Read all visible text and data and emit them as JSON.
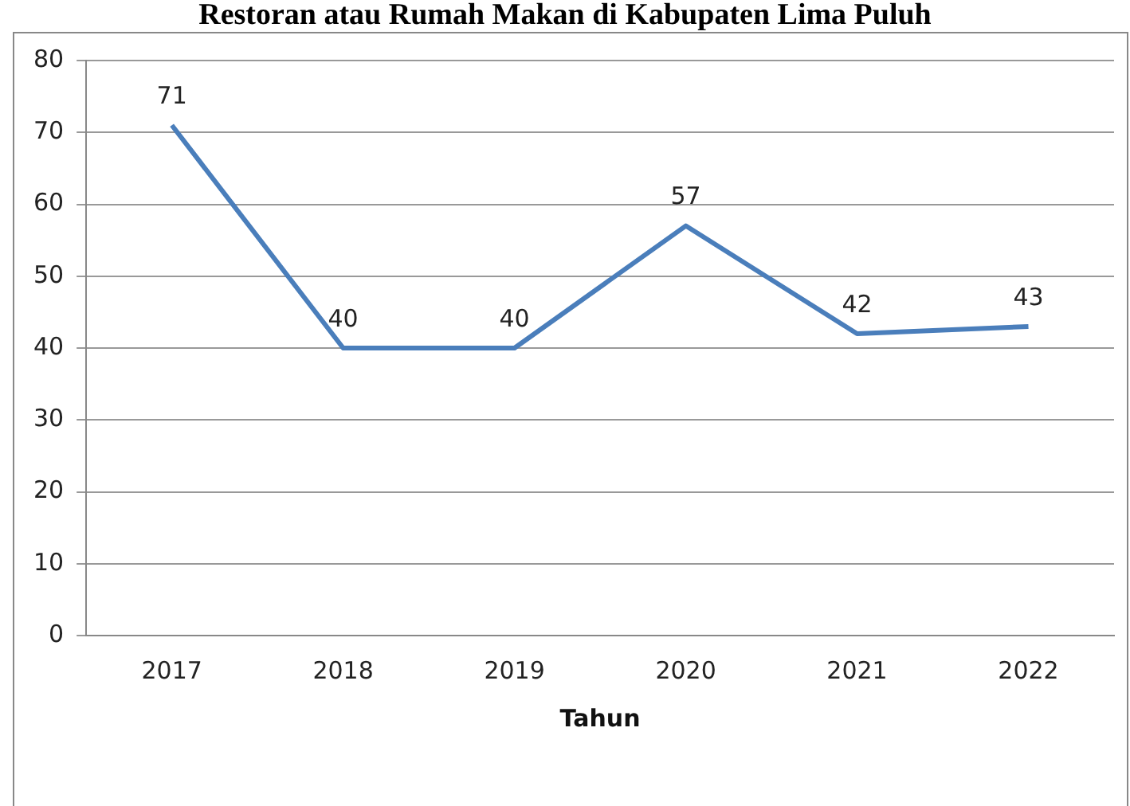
{
  "chart_data": {
    "type": "line",
    "title": "Restoran atau Rumah Makan di Kabupaten Lima Puluh",
    "xlabel": "Tahun",
    "categories": [
      "2017",
      "2018",
      "2019",
      "2020",
      "2021",
      "2022"
    ],
    "series": [
      {
        "color": "#4a7ebb",
        "values": [
          71,
          40,
          40,
          57,
          42,
          43
        ]
      }
    ],
    "ylim": [
      0,
      80
    ],
    "yticks": [
      0,
      10,
      20,
      30,
      40,
      50,
      60,
      70,
      80
    ],
    "grid": "y",
    "legend": false,
    "marker": "none",
    "line_style": "solid",
    "data_labels": true
  }
}
